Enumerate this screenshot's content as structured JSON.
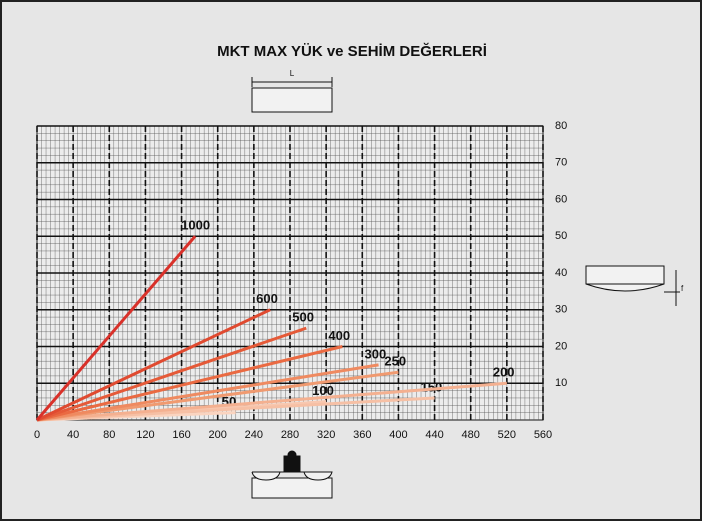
{
  "chart_data": {
    "type": "line",
    "title": "MKT MAX YÜK ve SEHİM DEĞERLERİ",
    "beam_label": "L",
    "deflection_label": "f",
    "xlim": [
      0,
      560
    ],
    "xticks": [
      0,
      40,
      80,
      120,
      160,
      200,
      240,
      280,
      320,
      360,
      400,
      440,
      480,
      520,
      560
    ],
    "ylim": [
      0,
      80
    ],
    "yticks": [
      10,
      20,
      30,
      40,
      50,
      60,
      70,
      80
    ],
    "grid": true,
    "series": [
      {
        "name": "1000",
        "color": "#d9312a",
        "x": [
          0,
          175
        ],
        "values": [
          0,
          50
        ]
      },
      {
        "name": "600",
        "color": "#e04a30",
        "x": [
          0,
          258
        ],
        "values": [
          0,
          30
        ]
      },
      {
        "name": "500",
        "color": "#e55a38",
        "x": [
          0,
          298
        ],
        "values": [
          0,
          25
        ]
      },
      {
        "name": "400",
        "color": "#ea6a42",
        "x": [
          0,
          338
        ],
        "values": [
          0,
          20
        ]
      },
      {
        "name": "300",
        "color": "#ef8a60",
        "x": [
          0,
          378
        ],
        "values": [
          0,
          15
        ]
      },
      {
        "name": "250",
        "color": "#f09a70",
        "x": [
          0,
          400
        ],
        "values": [
          0,
          13
        ]
      },
      {
        "name": "200",
        "color": "#f4b090",
        "x": [
          0,
          520
        ],
        "values": [
          0,
          10
        ]
      },
      {
        "name": "150",
        "color": "#f6c0a5",
        "x": [
          0,
          440
        ],
        "values": [
          0,
          6
        ]
      },
      {
        "name": "100",
        "color": "#f8c8b0",
        "x": [
          0,
          320
        ],
        "values": [
          0,
          5
        ]
      },
      {
        "name": "50",
        "color": "#fad4c0",
        "x": [
          0,
          220
        ],
        "values": [
          0,
          2
        ]
      }
    ]
  }
}
